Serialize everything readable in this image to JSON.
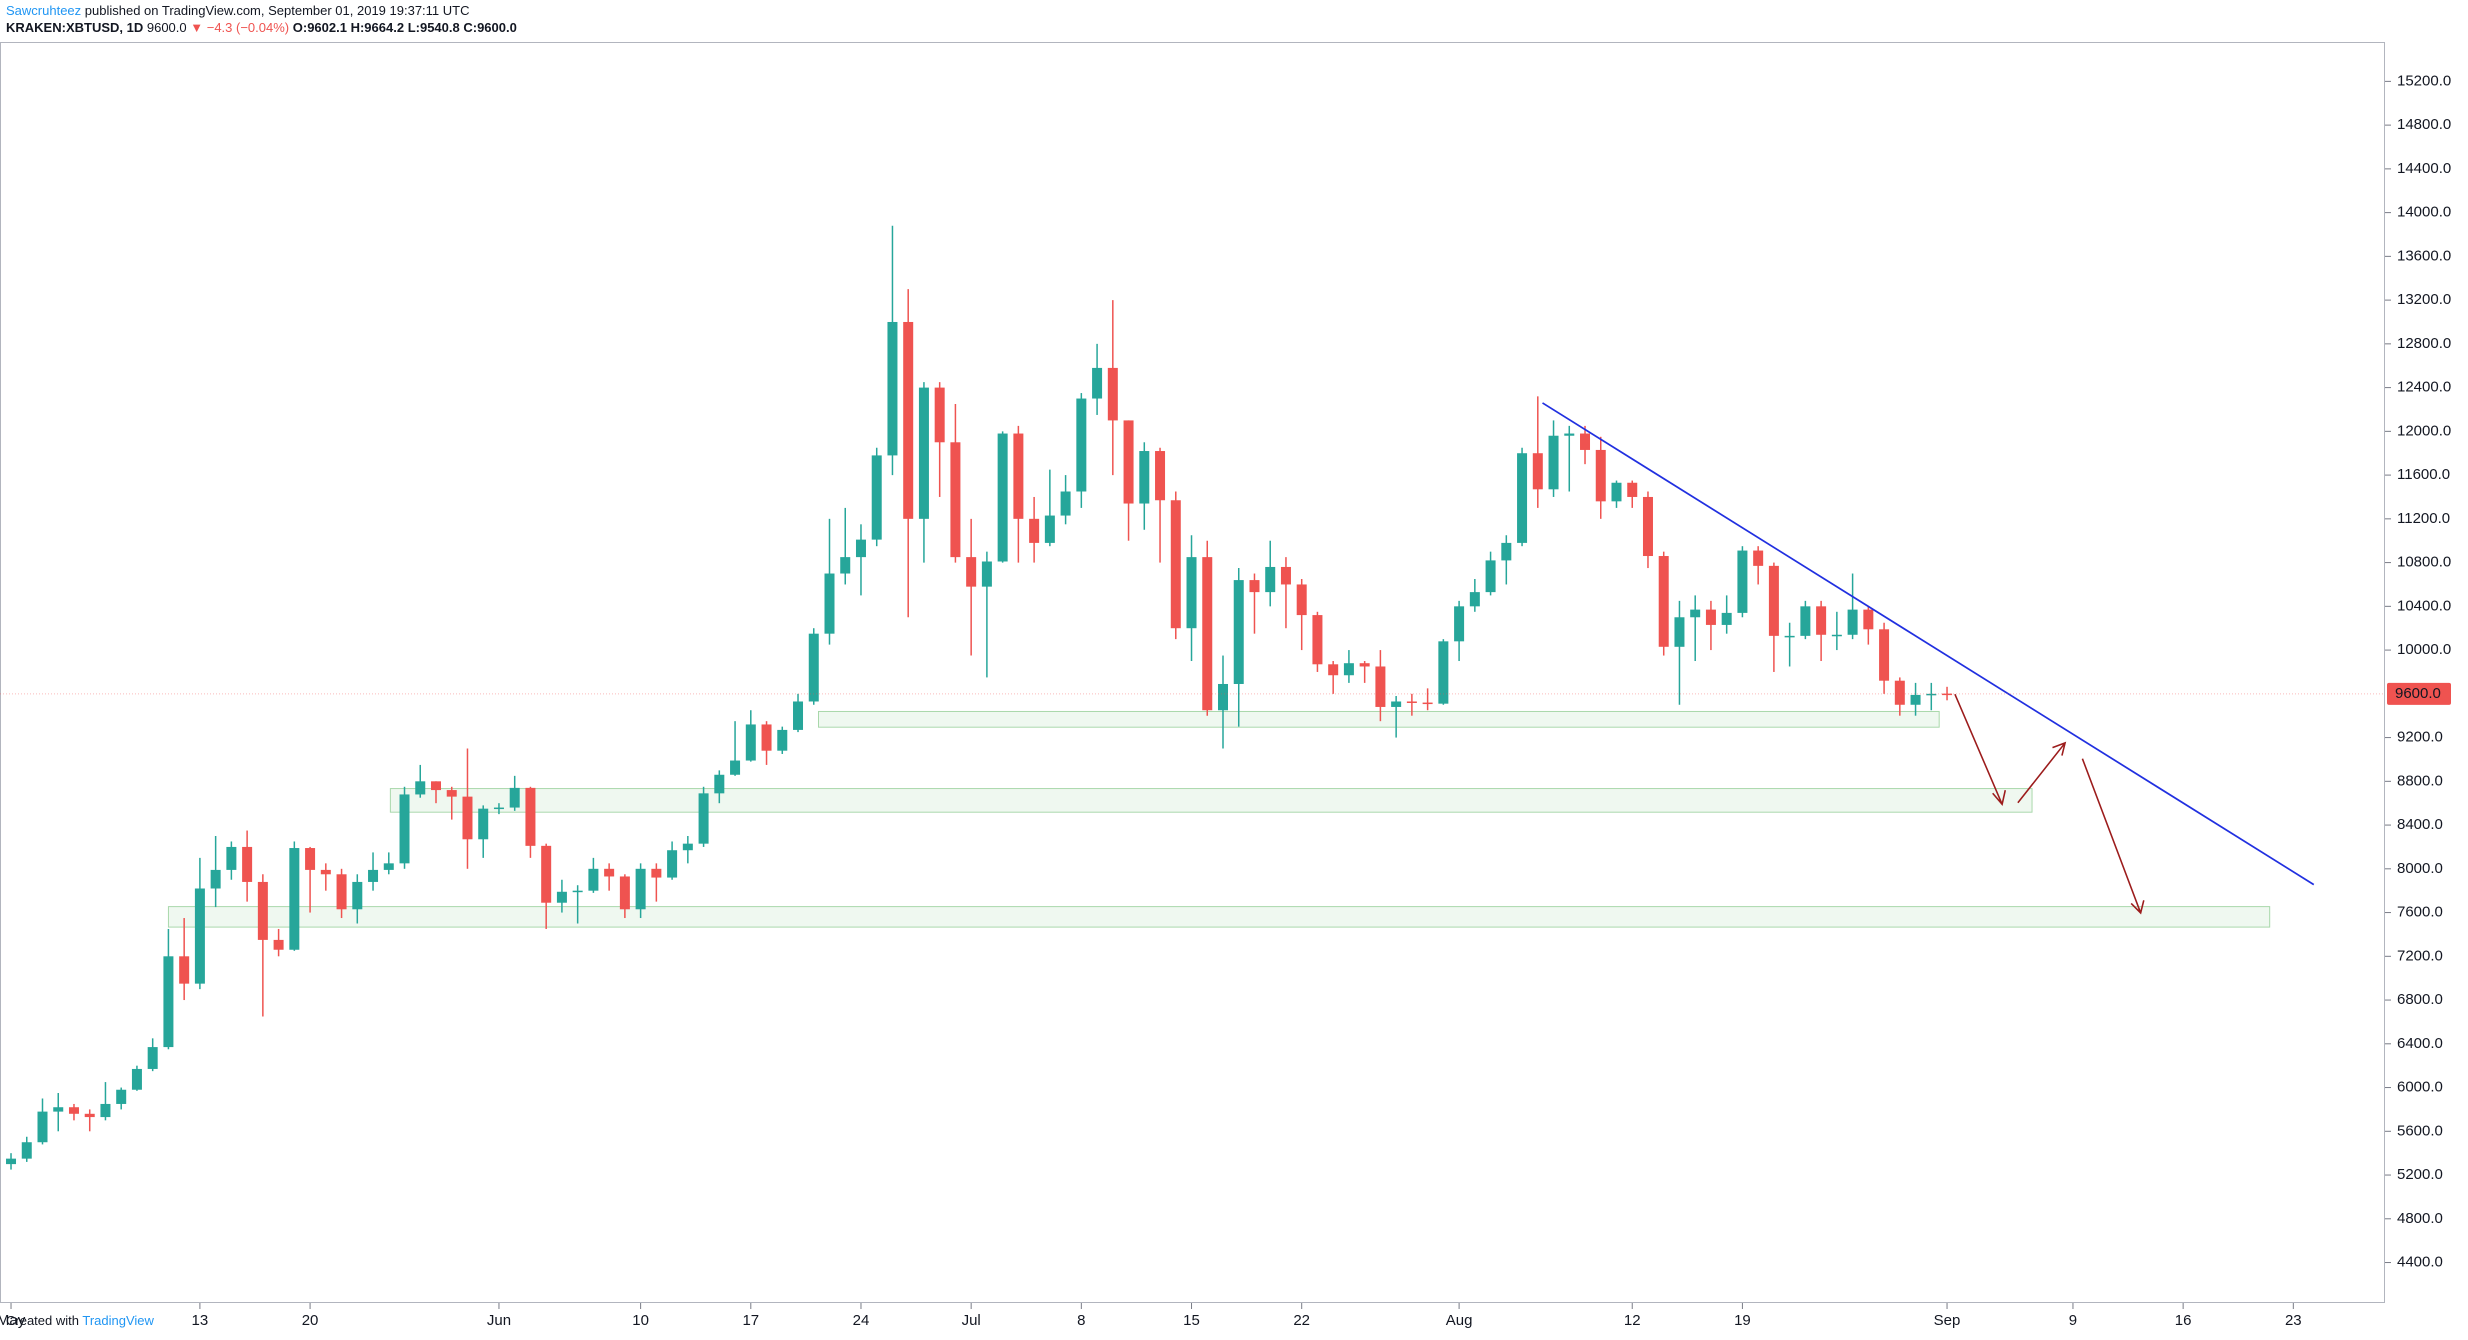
{
  "header": {
    "author": "Sawcruhteez",
    "published": "published on TradingView.com, September 01, 2019 19:37:11 UTC",
    "symbol": "KRAKEN:XBTUSD, 1D",
    "last": "9600.0",
    "change": "▼ −4.3 (−0.04%)",
    "open": "O:9602.1",
    "high": "H:9664.2",
    "low": "L:9540.8",
    "close": "C:9600.0"
  },
  "footer": {
    "created": "Created with",
    "brand": "TradingView"
  },
  "chart_data": {
    "type": "candlestick",
    "up_color": "#26a69a",
    "down_color": "#ef5350",
    "open": [
      5300,
      5350,
      5500,
      5780,
      5820,
      5760,
      5730,
      5850,
      5980,
      6170,
      6370,
      7200,
      6950,
      7820,
      7990,
      8200,
      7880,
      7350,
      7260,
      8190,
      7990,
      7950,
      7630,
      7880,
      7990,
      8050,
      8680,
      8800,
      8720,
      8660,
      8270,
      8550,
      8560,
      8740,
      8210,
      7690,
      7790,
      7800,
      8000,
      7930,
      7630,
      8000,
      7920,
      8170,
      8230,
      8690,
      8860,
      8990,
      9320,
      9080,
      9270,
      9530,
      10150,
      10700,
      10850,
      11010,
      11780,
      13000,
      11200,
      12400,
      11900,
      10850,
      10580,
      10810,
      11980,
      11200,
      10980,
      11230,
      11450,
      12300,
      12580,
      12100,
      11340,
      11820,
      11370,
      10200,
      10850,
      9450,
      9690,
      10640,
      10530,
      10760,
      10600,
      10320,
      9870,
      9770,
      9880,
      9850,
      9480,
      9530,
      9520,
      9510,
      10080,
      10400,
      10530,
      10820,
      10980,
      11800,
      11470,
      11960,
      11980,
      11830,
      11360,
      11530,
      11400,
      10860,
      10030,
      10300,
      10370,
      10230,
      10340,
      10910,
      10770,
      10130,
      10130,
      10400,
      10140,
      10140,
      10370,
      10190,
      9720,
      9500,
      9590,
      9602.1
    ],
    "high": [
      5400,
      5550,
      5900,
      5950,
      5850,
      5800,
      6050,
      6000,
      6200,
      6450,
      7450,
      7550,
      8100,
      8300,
      8250,
      8350,
      7950,
      7450,
      8250,
      8200,
      8050,
      8000,
      7950,
      8150,
      8150,
      8750,
      8950,
      8800,
      8750,
      9100,
      8580,
      8600,
      8850,
      8750,
      8230,
      7900,
      7850,
      8100,
      8050,
      7950,
      8050,
      8050,
      8250,
      8300,
      8750,
      8900,
      9350,
      9450,
      9350,
      9300,
      9600,
      10200,
      11200,
      11300,
      11150,
      11850,
      13880,
      13300,
      12450,
      12450,
      12250,
      11200,
      10900,
      12000,
      12050,
      11400,
      11650,
      11600,
      12350,
      12800,
      13200,
      12100,
      11900,
      11850,
      11450,
      11050,
      11000,
      9950,
      10750,
      10700,
      11000,
      10850,
      10650,
      10350,
      9900,
      10000,
      9900,
      10000,
      9580,
      9600,
      9650,
      10100,
      10450,
      10650,
      10900,
      11050,
      11850,
      12320,
      12100,
      12050,
      12050,
      11950,
      11550,
      11550,
      11450,
      10900,
      10450,
      10500,
      10450,
      10500,
      10950,
      10950,
      10800,
      10250,
      10450,
      10450,
      10350,
      10700,
      10400,
      10250,
      9750,
      9700,
      9700,
      9664.2
    ],
    "low": [
      5250,
      5320,
      5480,
      5600,
      5700,
      5600,
      5700,
      5800,
      5970,
      6150,
      6350,
      6800,
      6900,
      7650,
      7900,
      7700,
      6650,
      7200,
      7250,
      7600,
      7800,
      7550,
      7500,
      7800,
      7950,
      8000,
      8650,
      8600,
      8450,
      8000,
      8100,
      8500,
      8530,
      8100,
      7450,
      7600,
      7500,
      7780,
      7800,
      7550,
      7550,
      7700,
      7900,
      8050,
      8200,
      8600,
      8850,
      8980,
      8950,
      9050,
      9250,
      9500,
      10050,
      10600,
      10500,
      10950,
      11600,
      10300,
      10800,
      11400,
      10800,
      9950,
      9750,
      10800,
      10800,
      10800,
      10950,
      11150,
      11300,
      12150,
      11600,
      11000,
      11100,
      10800,
      10100,
      9900,
      9400,
      9100,
      9300,
      10150,
      10400,
      10200,
      10000,
      9800,
      9600,
      9700,
      9700,
      9350,
      9200,
      9400,
      9450,
      9500,
      9900,
      10350,
      10500,
      10600,
      10950,
      11300,
      11400,
      11450,
      11700,
      11200,
      11300,
      11300,
      10750,
      9950,
      9500,
      9900,
      10000,
      10150,
      10300,
      10600,
      9800,
      9850,
      10100,
      9900,
      10000,
      10100,
      10050,
      9600,
      9400,
      9400,
      9450,
      9540.8
    ],
    "close": [
      5350,
      5500,
      5780,
      5820,
      5760,
      5730,
      5850,
      5980,
      6170,
      6370,
      7200,
      6950,
      7820,
      7990,
      8200,
      7880,
      7350,
      7260,
      8190,
      7990,
      7950,
      7630,
      7880,
      7990,
      8050,
      8680,
      8800,
      8720,
      8660,
      8270,
      8550,
      8560,
      8740,
      8210,
      7690,
      7790,
      7800,
      8000,
      7930,
      7630,
      8000,
      7920,
      8170,
      8230,
      8690,
      8860,
      8990,
      9320,
      9080,
      9270,
      9530,
      10150,
      10700,
      10850,
      11010,
      11780,
      13000,
      11200,
      12400,
      11900,
      10850,
      10580,
      10810,
      11980,
      11200,
      10980,
      11230,
      11450,
      12300,
      12580,
      12100,
      11340,
      11820,
      11370,
      10200,
      10850,
      9450,
      9690,
      10640,
      10530,
      10760,
      10600,
      10320,
      9870,
      9770,
      9880,
      9850,
      9480,
      9530,
      9520,
      9510,
      10080,
      10400,
      10530,
      10820,
      10980,
      11800,
      11470,
      11960,
      11980,
      11830,
      11360,
      11530,
      11400,
      10860,
      10030,
      10300,
      10370,
      10230,
      10340,
      10910,
      10770,
      10130,
      10130,
      10400,
      10140,
      10140,
      10370,
      10190,
      9720,
      9500,
      9590,
      9600,
      9600
    ],
    "ylim": [
      4030,
      15560
    ],
    "yticks": [
      {
        "value": 4400,
        "label": "4400.0"
      },
      {
        "value": 4800,
        "label": "4800.0"
      },
      {
        "value": 5200,
        "label": "5200.0"
      },
      {
        "value": 5600,
        "label": "5600.0"
      },
      {
        "value": 6000,
        "label": "6000.0"
      },
      {
        "value": 6400,
        "label": "6400.0"
      },
      {
        "value": 6800,
        "label": "6800.0"
      },
      {
        "value": 7200,
        "label": "7200.0"
      },
      {
        "value": 7600,
        "label": "7600.0"
      },
      {
        "value": 8000,
        "label": "8000.0"
      },
      {
        "value": 8400,
        "label": "8400.0"
      },
      {
        "value": 8800,
        "label": "8800.0"
      },
      {
        "value": 9200,
        "label": "9200.0"
      },
      {
        "value": 10000,
        "label": "10000.0"
      },
      {
        "value": 10400,
        "label": "10400.0"
      },
      {
        "value": 10800,
        "label": "10800.0"
      },
      {
        "value": 11200,
        "label": "11200.0"
      },
      {
        "value": 11600,
        "label": "11600.0"
      },
      {
        "value": 12000,
        "label": "12000.0"
      },
      {
        "value": 12400,
        "label": "12400.0"
      },
      {
        "value": 12800,
        "label": "12800.0"
      },
      {
        "value": 13200,
        "label": "13200.0"
      },
      {
        "value": 13600,
        "label": "13600.0"
      },
      {
        "value": 14000,
        "label": "14000.0"
      },
      {
        "value": 14400,
        "label": "14400.0"
      },
      {
        "value": 14800,
        "label": "14800.0"
      },
      {
        "value": 15200,
        "label": "15200.0"
      }
    ],
    "xticks": [
      {
        "value": 0,
        "label": "May"
      },
      {
        "value": 12,
        "label": "13"
      },
      {
        "value": 19,
        "label": "20"
      },
      {
        "value": 31,
        "label": "Jun"
      },
      {
        "value": 40,
        "label": "10"
      },
      {
        "value": 47,
        "label": "17"
      },
      {
        "value": 54,
        "label": "24"
      },
      {
        "value": 61,
        "label": "Jul"
      },
      {
        "value": 68,
        "label": "8"
      },
      {
        "value": 75,
        "label": "15"
      },
      {
        "value": 82,
        "label": "22"
      },
      {
        "value": 92,
        "label": "Aug"
      },
      {
        "value": 103,
        "label": "12"
      },
      {
        "value": 110,
        "label": "19"
      },
      {
        "value": 123,
        "label": "Sep"
      },
      {
        "value": 131,
        "label": "9"
      },
      {
        "value": 138,
        "label": "16"
      },
      {
        "value": 145,
        "label": "23"
      }
    ],
    "last_price": {
      "value": 9600,
      "label": "9600.0"
    }
  }
}
